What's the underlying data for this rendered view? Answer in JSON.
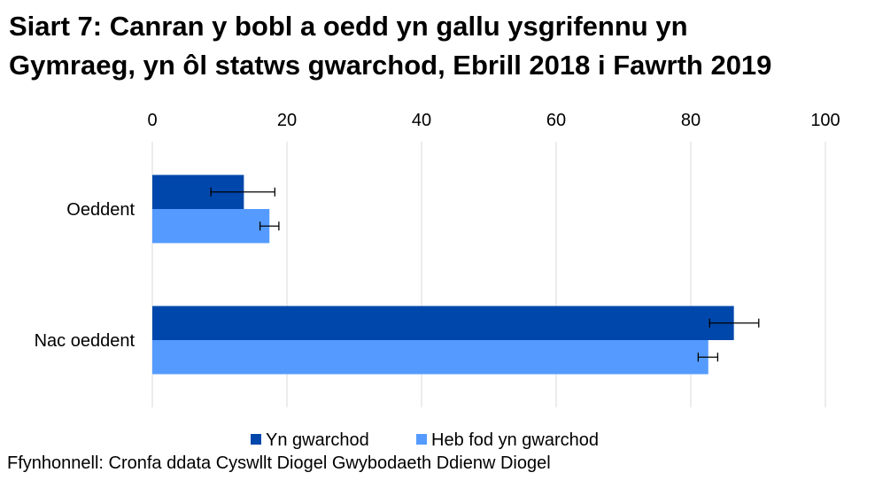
{
  "chart_data": {
    "type": "bar",
    "orientation": "horizontal",
    "title_lines": [
      "Siart 7: Canran y bobl a oedd yn gallu ysgrifennu yn",
      "Gymraeg, yn ôl statws gwarchod, Ebrill 2018 i Fawrth 2019"
    ],
    "categories": [
      "Oeddent",
      "Nac oeddent"
    ],
    "series": [
      {
        "name": "Yn gwarchod",
        "color": "#0047AB",
        "values": [
          13.6,
          86.4
        ],
        "error_low": [
          8.7,
          82.8
        ],
        "error_high": [
          18.2,
          90.1
        ]
      },
      {
        "name": "Heb fod yn gwarchod",
        "color": "#559BFF",
        "values": [
          17.4,
          82.6
        ],
        "error_low": [
          16.0,
          81.1
        ],
        "error_high": [
          18.8,
          84.0
        ]
      }
    ],
    "xlim": [
      0,
      100
    ],
    "xticks": [
      "0",
      "20",
      "40",
      "60",
      "80",
      "100"
    ],
    "xaxis_position": "top",
    "grid": true,
    "legend": "bottom",
    "source": "Ffynhonnell: Cronfa ddata Cyswllt Diogel Gwybodaeth Ddienw Diogel"
  }
}
